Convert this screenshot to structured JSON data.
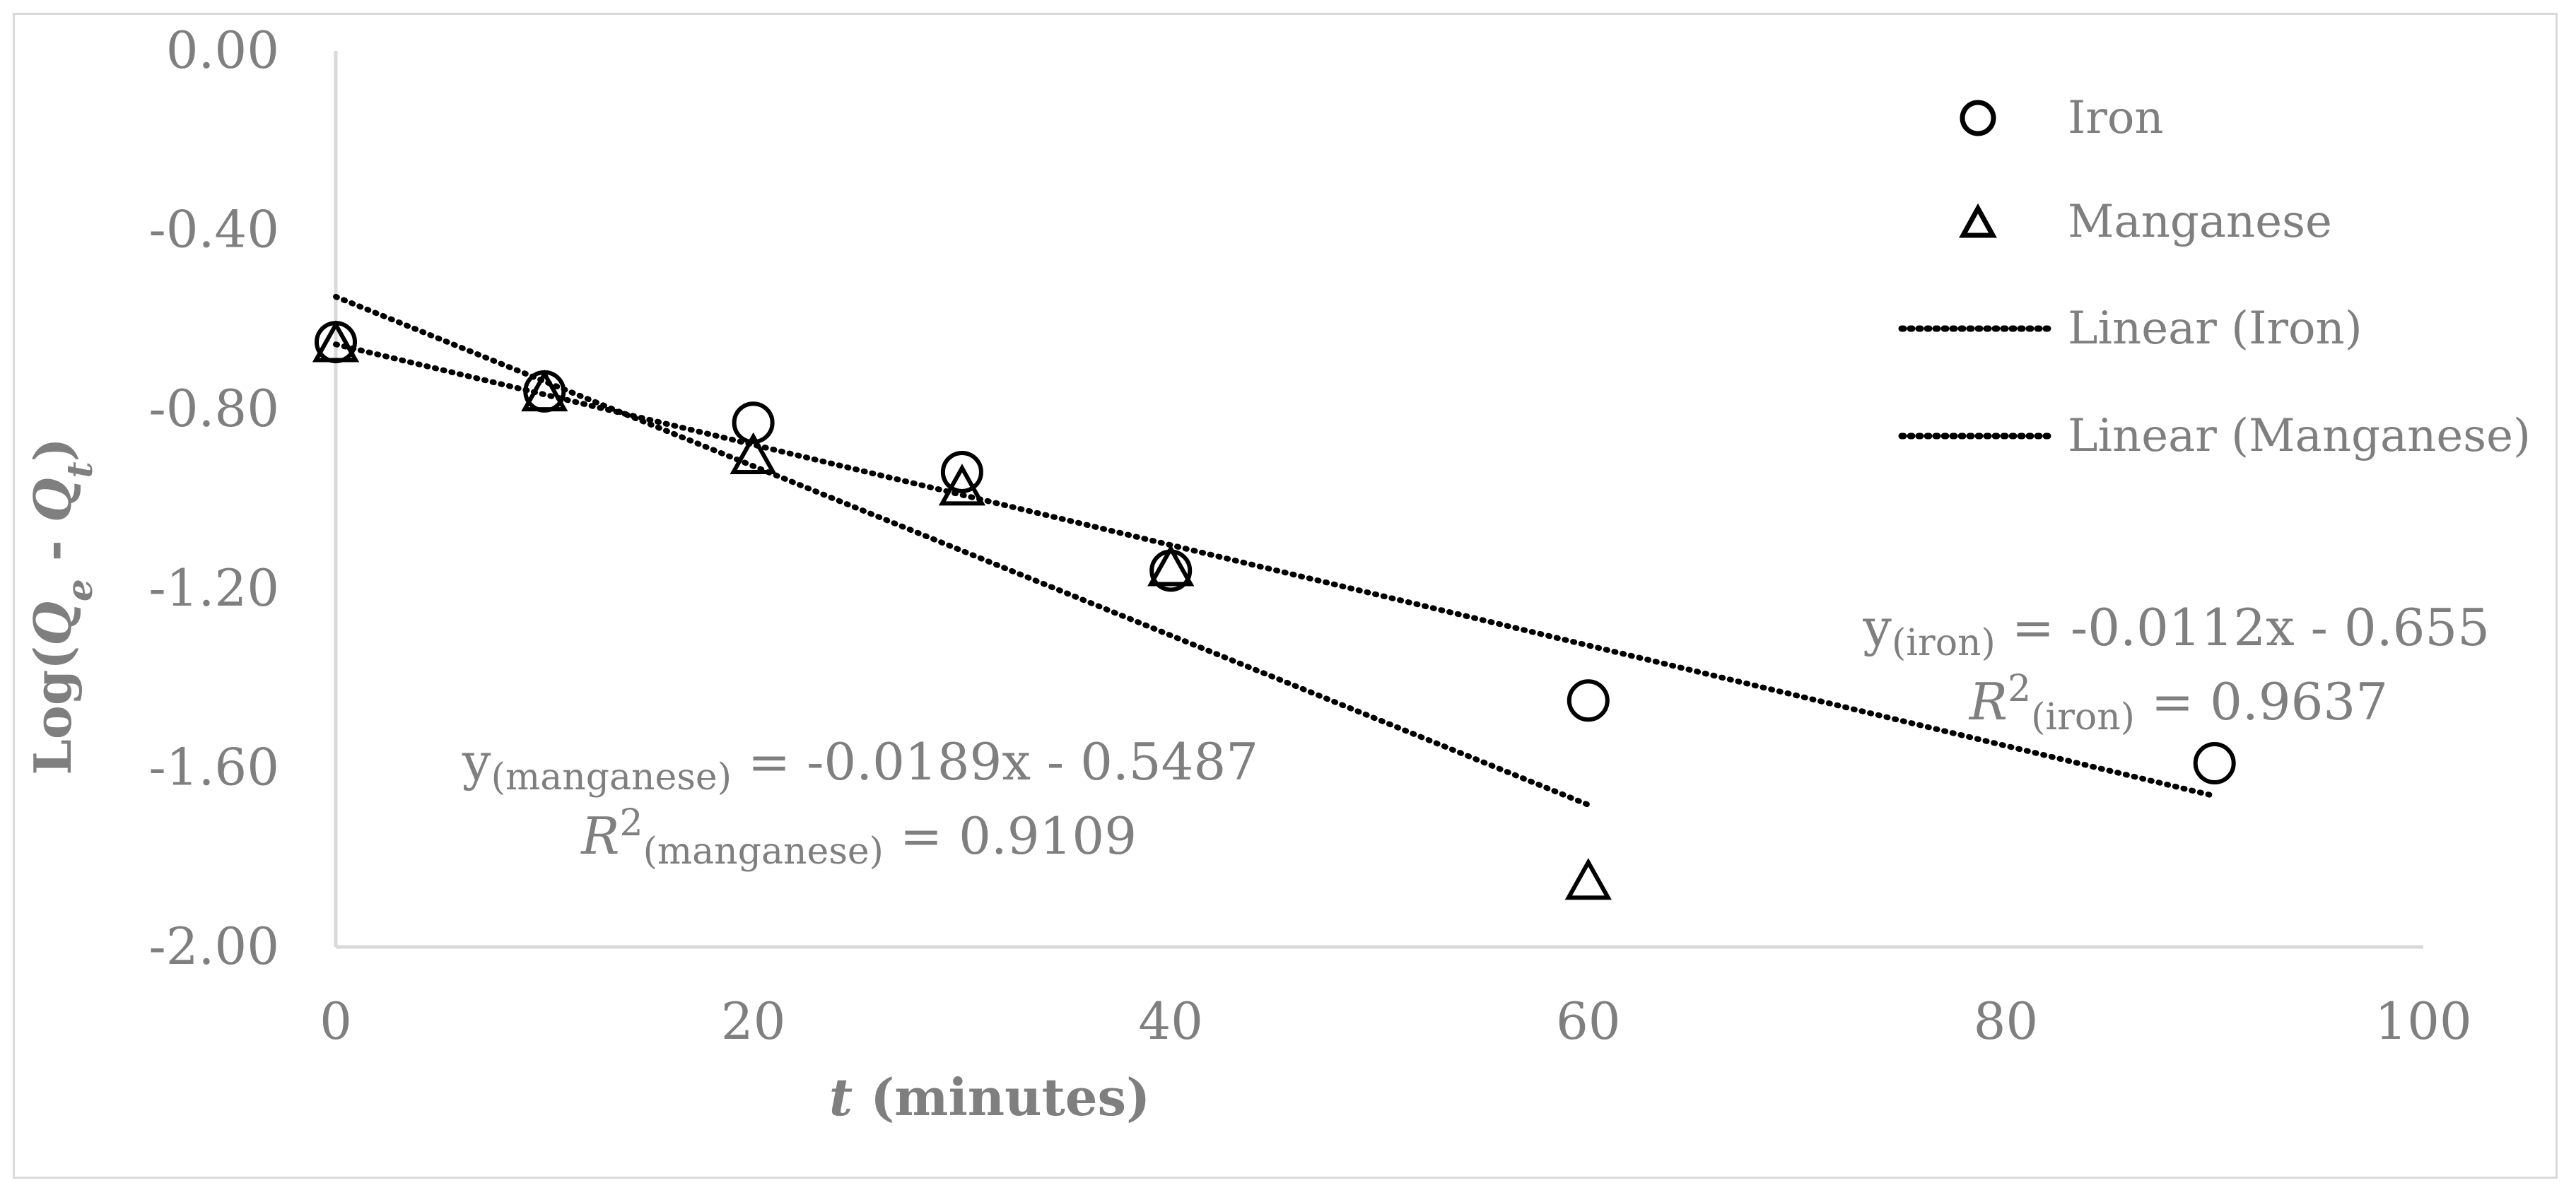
{
  "chart_data": {
    "type": "scatter",
    "title": "",
    "xlabel": "(minutes)",
    "xlabel_var": "t",
    "ylabel": "Log(Qe - Qt)",
    "ylabel_parts": [
      "Log(",
      "Q",
      "e",
      " - ",
      "Q",
      "t",
      ")"
    ],
    "xlim": [
      0,
      100
    ],
    "ylim": [
      -2.0,
      0.0
    ],
    "x_ticks": [
      {
        "value": 0,
        "label": "0"
      },
      {
        "value": 20,
        "label": "20"
      },
      {
        "value": 40,
        "label": "40"
      },
      {
        "value": 60,
        "label": "60"
      },
      {
        "value": 80,
        "label": "80"
      },
      {
        "value": 100,
        "label": "100"
      }
    ],
    "y_ticks": [
      {
        "value": 0.0,
        "label": "0.00"
      },
      {
        "value": -0.4,
        "label": "-0.40"
      },
      {
        "value": -0.8,
        "label": "-0.80"
      },
      {
        "value": -1.2,
        "label": "-1.20"
      },
      {
        "value": -1.6,
        "label": "-1.60"
      },
      {
        "value": -2.0,
        "label": "-2.00"
      }
    ],
    "grid": false,
    "legend_position": "top-right",
    "series": [
      {
        "name": "Iron",
        "marker": "circle",
        "points": [
          [
            0,
            -0.65
          ],
          [
            10,
            -0.76
          ],
          [
            20,
            -0.83
          ],
          [
            30,
            -0.94
          ],
          [
            40,
            -1.16
          ],
          [
            60,
            -1.45
          ],
          [
            90,
            -1.59
          ]
        ]
      },
      {
        "name": "Manganese",
        "marker": "triangle",
        "points": [
          [
            0,
            -0.66
          ],
          [
            10,
            -0.77
          ],
          [
            20,
            -0.91
          ],
          [
            30,
            -0.98
          ],
          [
            40,
            -1.16
          ],
          [
            60,
            -1.86
          ]
        ]
      }
    ],
    "trendlines": [
      {
        "name": "Linear (Iron)",
        "slope": -0.0112,
        "intercept": -0.655,
        "x_range": [
          0,
          90
        ]
      },
      {
        "name": "Linear (Manganese)",
        "slope": -0.0189,
        "intercept": -0.5487,
        "x_range": [
          0,
          60
        ]
      }
    ],
    "annotations": {
      "iron_eq": {
        "y": "y",
        "sub": "(iron)",
        "rest": " = -0.0112x - 0.655"
      },
      "iron_r2": {
        "r": "R",
        "sup": "2",
        "sub": "(iron)",
        "rest": " = 0.9637"
      },
      "mn_eq": {
        "y": "y",
        "sub": "(manganese)",
        "rest": " = -0.0189x - 0.5487"
      },
      "mn_r2": {
        "r": "R",
        "sup": "2",
        "sub": "(manganese)",
        "rest": " = 0.9109"
      }
    },
    "colors": {
      "axis": "#d9d9d9",
      "text": "#7f7f7f",
      "marker": "#000000",
      "trend": "#000000"
    }
  }
}
